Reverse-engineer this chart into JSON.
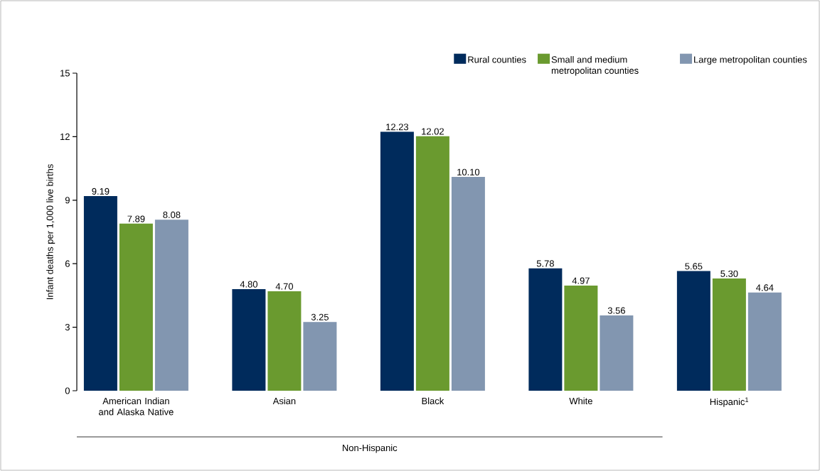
{
  "chart_data": {
    "type": "bar",
    "ylabel": "Infant deaths per 1,000 live births",
    "categories": [
      "American Indian and Alaska Native",
      "Asian",
      "Black",
      "White",
      "Hispanic$^{1}$"
    ],
    "series": [
      {
        "name": "Rural counties",
        "color": "#002b5c",
        "values": [
          9.19,
          4.8,
          12.23,
          5.78,
          5.65
        ],
        "value_labels": [
          "9.19",
          "4.80",
          "12.23",
          "5.78",
          "5.65"
        ]
      },
      {
        "name": "Small and medium metropolitan counties",
        "color": "#6a9a2f",
        "values": [
          7.89,
          4.7,
          12.02,
          4.97,
          5.3
        ],
        "value_labels": [
          "7.89",
          "4.70",
          "12.02",
          "4.97",
          "5.30"
        ]
      },
      {
        "name": "Large metropolitan counties",
        "color": "#8296b0",
        "values": [
          8.08,
          3.25,
          10.1,
          3.56,
          4.64
        ],
        "value_labels": [
          "8.08",
          "3.25",
          "10.10",
          "3.56",
          "4.64"
        ]
      }
    ],
    "ylim": [
      0,
      15
    ],
    "yticks": [
      0,
      3,
      6,
      9,
      12,
      15
    ],
    "grid": false,
    "legend": "top right",
    "annotations": [
      "Non-Hispanic"
    ]
  }
}
